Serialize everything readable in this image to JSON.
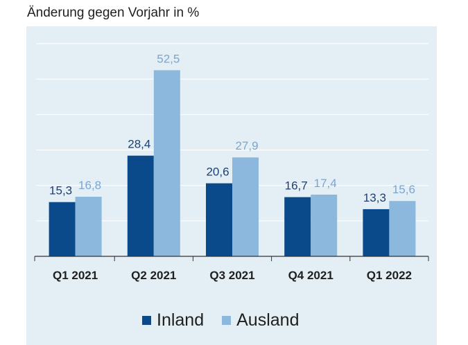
{
  "chart_data": {
    "type": "bar",
    "title": "Änderung gegen Vorjahr in %",
    "categories": [
      "Q1 2021",
      "Q2 2021",
      "Q3 2021",
      "Q4 2021",
      "Q1 2022"
    ],
    "series": [
      {
        "name": "Inland",
        "color": "#0b4a8a",
        "label_color": "#1f3f6e",
        "values": [
          15.3,
          28.4,
          20.6,
          16.7,
          13.3
        ],
        "labels": [
          "15,3",
          "28,4",
          "20,6",
          "16,7",
          "13,3"
        ]
      },
      {
        "name": "Ausland",
        "color": "#8bb8dc",
        "label_color": "#7aa6cf",
        "values": [
          16.8,
          52.5,
          27.9,
          17.4,
          15.6
        ],
        "labels": [
          "16,8",
          "52,5",
          "27,9",
          "17,4",
          "15,6"
        ]
      }
    ],
    "ylim": [
      0,
      60
    ],
    "grid": true,
    "legend_position": "bottom-center"
  }
}
